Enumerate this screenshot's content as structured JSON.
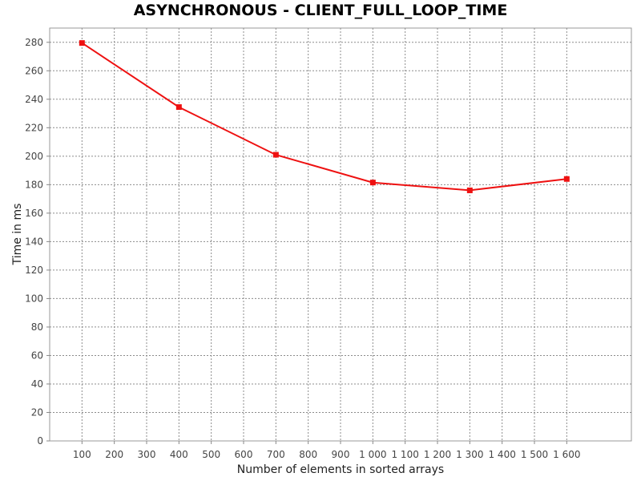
{
  "chart_data": {
    "type": "line",
    "title": "ASYNCHRONOUS - CLIENT_FULL_LOOP_TIME",
    "xlabel": "Number of elements in sorted arrays",
    "ylabel": "Time in ms",
    "x_ticks": [
      100,
      200,
      300,
      400,
      500,
      600,
      700,
      800,
      900,
      1000,
      1100,
      1200,
      1300,
      1400,
      1500,
      1600
    ],
    "x_tick_labels": [
      "100",
      "200",
      "300",
      "400",
      "500",
      "600",
      "700",
      "800",
      "900",
      "1 000",
      "1 100",
      "1 200",
      "1 300",
      "1 400",
      "1 500",
      "1 600"
    ],
    "y_ticks": [
      0,
      20,
      40,
      60,
      80,
      100,
      120,
      140,
      160,
      180,
      200,
      220,
      240,
      260,
      280
    ],
    "xlim": [
      0,
      1800
    ],
    "ylim": [
      0,
      290
    ],
    "grid": true,
    "series": [
      {
        "color": "#ee1111",
        "marker": "square",
        "x": [
          100,
          400,
          700,
          1000,
          1300,
          1600
        ],
        "y": [
          279.5,
          234.5,
          201,
          181.5,
          176,
          184
        ]
      }
    ]
  }
}
